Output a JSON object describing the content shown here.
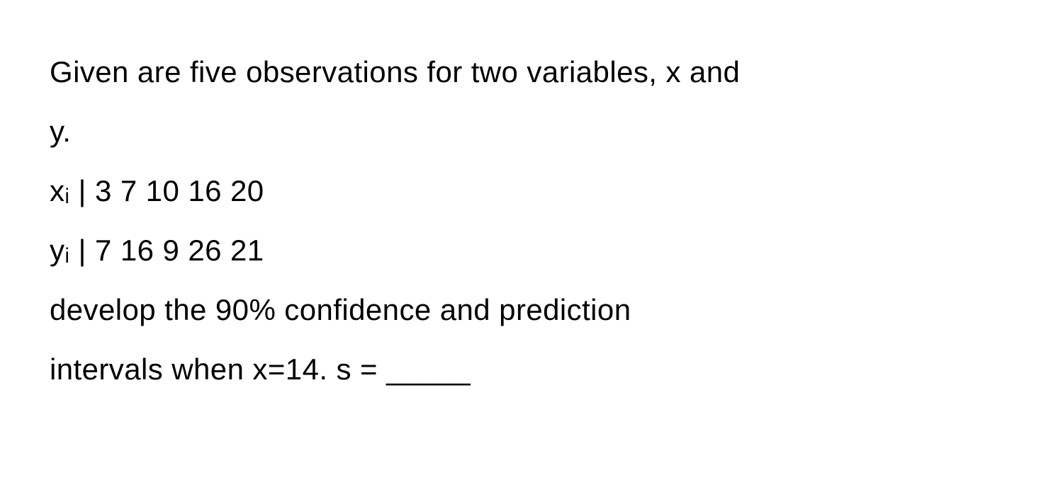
{
  "text": {
    "line1": "Given are five observations for two variables, x and",
    "line2": "y.",
    "line3": "xᵢ | 3 7 10 16 20",
    "line4": "yᵢ | 7 16 9 26 21",
    "line5": "develop the 90% confidence and prediction",
    "line6": "intervals when x=14. s = _____"
  },
  "styling": {
    "font_size": 42,
    "line_height": 2.0,
    "font_weight": 400,
    "text_color": "#000000",
    "background_color": "#ffffff",
    "font_family": "-apple-system, BlinkMacSystemFont, Segoe UI, Helvetica, Arial, sans-serif"
  }
}
